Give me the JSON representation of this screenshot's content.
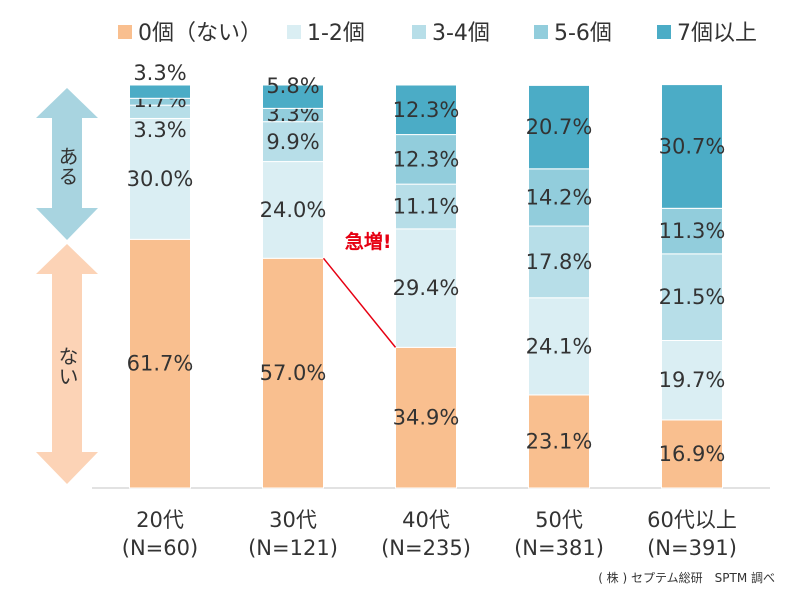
{
  "chart_data": {
    "type": "bar",
    "stacked": true,
    "normalized": true,
    "categories": [
      "20代",
      "30代",
      "40代",
      "50代",
      "60代以上"
    ],
    "category_n": [
      "(N=60)",
      "(N=121)",
      "(N=235)",
      "(N=381)",
      "(N=391)"
    ],
    "series": [
      {
        "name": "0個（ない）",
        "color": "#f9bf8f",
        "values": [
          61.7,
          57.0,
          34.9,
          23.1,
          16.9
        ],
        "labels": [
          "61.7%",
          "57.0%",
          "34.9%",
          "23.1%",
          "16.9%"
        ]
      },
      {
        "name": "1-2個",
        "color": "#daeef3",
        "values": [
          30.0,
          24.0,
          29.4,
          24.1,
          19.7
        ],
        "labels": [
          "30.0%",
          "24.0%",
          "29.4%",
          "24.1%",
          "19.7%"
        ]
      },
      {
        "name": "3-4個",
        "color": "#b7dee8",
        "values": [
          3.3,
          9.9,
          11.1,
          17.8,
          21.5
        ],
        "labels": [
          "3.3%",
          "9.9%",
          "11.1%",
          "17.8%",
          "21.5%"
        ]
      },
      {
        "name": "5-6個",
        "color": "#92cddc",
        "values": [
          1.7,
          3.3,
          12.3,
          14.2,
          11.3
        ],
        "labels": [
          "1.7%",
          "3.3%",
          "12.3%",
          "14.2%",
          "11.3%"
        ]
      },
      {
        "name": "7個以上",
        "color": "#4bacc6",
        "values": [
          3.3,
          5.8,
          12.3,
          20.7,
          30.7
        ],
        "labels": [
          "3.3%",
          "5.8%",
          "12.3%",
          "20.7%",
          "30.7%"
        ]
      }
    ],
    "ylim": [
      0,
      100
    ],
    "legend": "top",
    "grid": false,
    "side_labels": {
      "top": "ある",
      "bottom": "ない"
    },
    "annotation": {
      "text": "急増!",
      "from_category": "30代",
      "to_category": "40代"
    }
  },
  "source": "( 株 ) セプテム総研　SPTM 調べ"
}
